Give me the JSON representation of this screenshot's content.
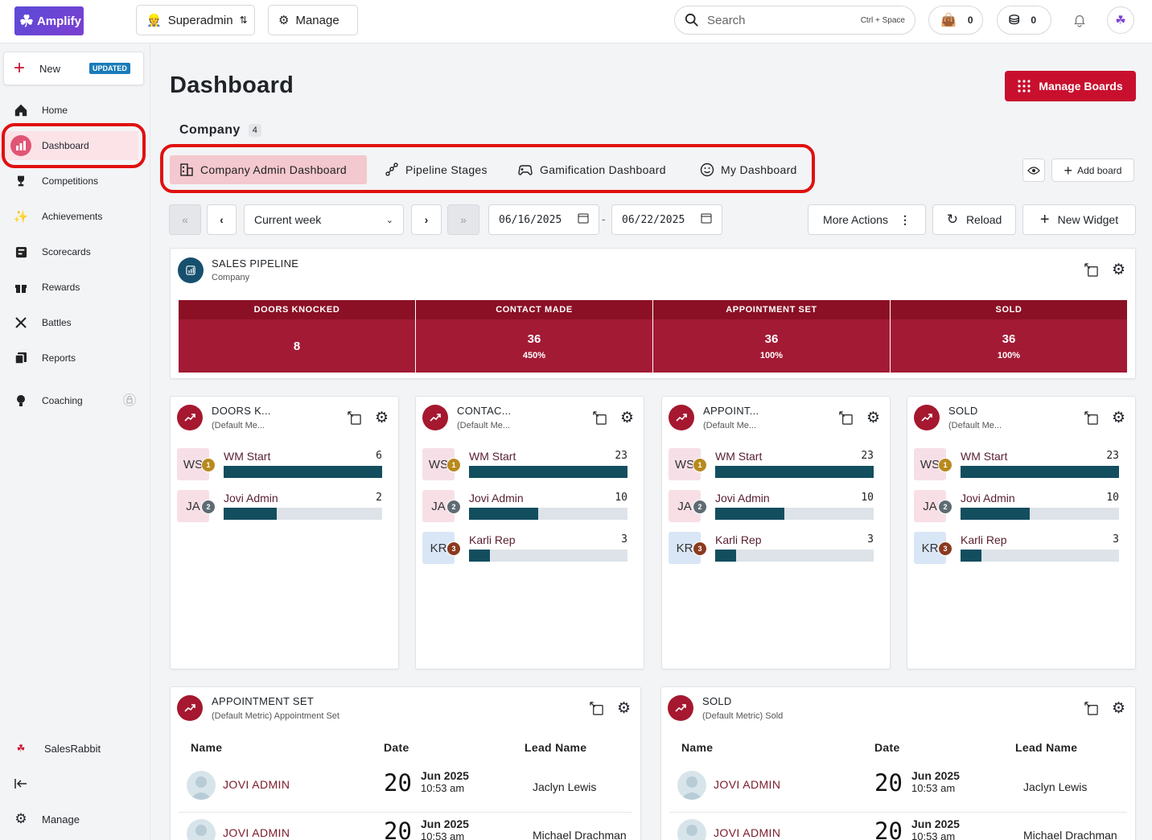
{
  "app": {
    "logo_text": "Amplify"
  },
  "topbar": {
    "role_label": "Superadmin",
    "manage_label": "Manage",
    "search_placeholder": "Search",
    "search_shortcut": "Ctrl + Space",
    "wallet_count": "0",
    "coins_count": "0"
  },
  "sidebar": {
    "new_label": "New",
    "new_badge": "UPDATED",
    "items": [
      {
        "label": "Home",
        "icon": "home-icon"
      },
      {
        "label": "Dashboard",
        "icon": "chart-icon"
      },
      {
        "label": "Competitions",
        "icon": "trophy-icon"
      },
      {
        "label": "Achievements",
        "icon": "achievement-icon"
      },
      {
        "label": "Scorecards",
        "icon": "scorecard-icon"
      },
      {
        "label": "Rewards",
        "icon": "gift-icon"
      },
      {
        "label": "Battles",
        "icon": "swords-icon"
      },
      {
        "label": "Reports",
        "icon": "reports-icon"
      },
      {
        "label": "Coaching",
        "icon": "lightbulb-icon"
      }
    ],
    "footer": {
      "org_label": "SalesRabbit",
      "manage_label": "Manage"
    }
  },
  "main": {
    "title": "Dashboard",
    "manage_boards_label": "Manage Boards",
    "company_label": "Company",
    "company_count": "4",
    "tabs": [
      {
        "label": "Company Admin Dashboard"
      },
      {
        "label": "Pipeline Stages"
      },
      {
        "label": "Gamification Dashboard"
      },
      {
        "label": "My Dashboard"
      }
    ],
    "add_board_label": "Add board",
    "period_label": "Current week",
    "date_from": "06/16/2025",
    "date_to": "06/22/2025",
    "date_sep": "-",
    "more_actions_label": "More Actions",
    "reload_label": "Reload",
    "new_widget_label": "New Widget"
  },
  "pipeline": {
    "title": "SALES PIPELINE",
    "subtitle": "Company",
    "stages": [
      {
        "label": "DOORS KNOCKED",
        "value": "8",
        "pct": ""
      },
      {
        "label": "CONTACT MADE",
        "value": "36",
        "pct": "450%"
      },
      {
        "label": "APPOINTMENT SET",
        "value": "36",
        "pct": "100%"
      },
      {
        "label": "SOLD",
        "value": "36",
        "pct": "100%"
      }
    ]
  },
  "leaderboards": [
    {
      "title": "DOORS K...",
      "subtitle": "(Default Me...",
      "max": 6,
      "rows": [
        {
          "initials": "WS",
          "rank": "1",
          "name": "WM Start",
          "value": 6
        },
        {
          "initials": "JA",
          "rank": "2",
          "name": "Jovi Admin",
          "value": 2
        }
      ]
    },
    {
      "title": "CONTAC...",
      "subtitle": "(Default Me...",
      "max": 23,
      "rows": [
        {
          "initials": "WS",
          "rank": "1",
          "name": "WM Start",
          "value": 23
        },
        {
          "initials": "JA",
          "rank": "2",
          "name": "Jovi Admin",
          "value": 10
        },
        {
          "initials": "KR",
          "rank": "3",
          "name": "Karli Rep",
          "value": 3
        }
      ]
    },
    {
      "title": "APPOINT...",
      "subtitle": "(Default Me...",
      "max": 23,
      "rows": [
        {
          "initials": "WS",
          "rank": "1",
          "name": "WM Start",
          "value": 23
        },
        {
          "initials": "JA",
          "rank": "2",
          "name": "Jovi Admin",
          "value": 10
        },
        {
          "initials": "KR",
          "rank": "3",
          "name": "Karli Rep",
          "value": 3
        }
      ]
    },
    {
      "title": "SOLD",
      "subtitle": "(Default Me...",
      "max": 23,
      "rows": [
        {
          "initials": "WS",
          "rank": "1",
          "name": "WM Start",
          "value": 23
        },
        {
          "initials": "JA",
          "rank": "2",
          "name": "Jovi Admin",
          "value": 10
        },
        {
          "initials": "KR",
          "rank": "3",
          "name": "Karli Rep",
          "value": 3
        }
      ]
    }
  ],
  "tables": [
    {
      "title": "APPOINTMENT SET",
      "subtitle": "(Default Metric) Appointment Set",
      "columns": [
        "Name",
        "Date",
        "Lead Name"
      ],
      "rows": [
        {
          "name": "JOVI ADMIN",
          "day": "20",
          "month": "Jun 2025",
          "time": "10:53 am",
          "lead": "Jaclyn Lewis"
        },
        {
          "name": "JOVI ADMIN",
          "day": "20",
          "month": "Jun 2025",
          "time": "10:53 am",
          "lead": "Michael Drachman"
        }
      ]
    },
    {
      "title": "SOLD",
      "subtitle": "(Default Metric) Sold",
      "columns": [
        "Name",
        "Date",
        "Lead Name"
      ],
      "rows": [
        {
          "name": "JOVI ADMIN",
          "day": "20",
          "month": "Jun 2025",
          "time": "10:53 am",
          "lead": "Jaclyn Lewis"
        },
        {
          "name": "JOVI ADMIN",
          "day": "20",
          "month": "Jun 2025",
          "time": "10:53 am",
          "lead": "Michael Drachman"
        }
      ]
    }
  ],
  "colors": {
    "brand_red": "#c8102e",
    "funnel_head": "#8b1025",
    "funnel_body": "#a31a35",
    "bar_fill": "#124e5e",
    "highlight": "#e01010"
  }
}
